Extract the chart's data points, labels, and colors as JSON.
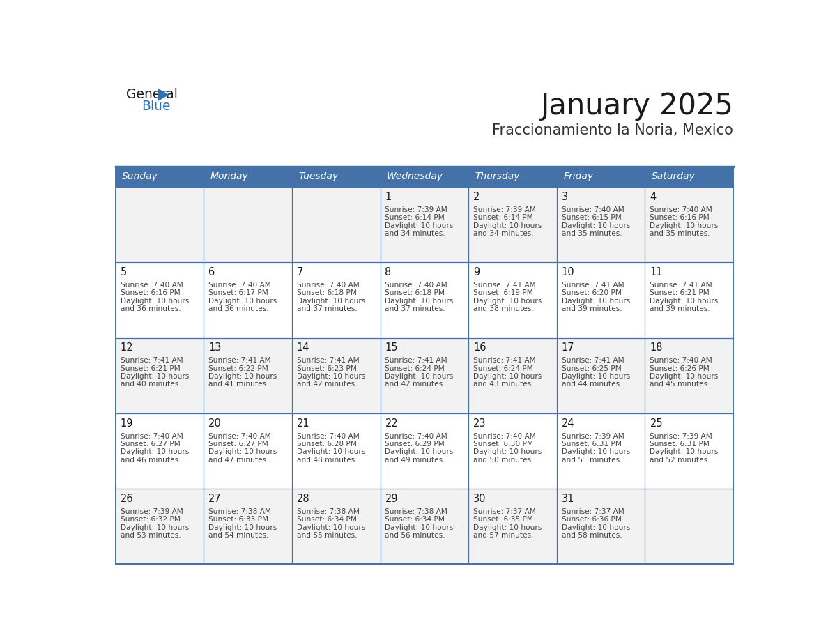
{
  "title": "January 2025",
  "subtitle": "Fraccionamiento la Noria, Mexico",
  "days_of_week": [
    "Sunday",
    "Monday",
    "Tuesday",
    "Wednesday",
    "Thursday",
    "Friday",
    "Saturday"
  ],
  "header_bg": "#4472A8",
  "header_text": "#FFFFFF",
  "row0_bg": "#F2F2F2",
  "row1_bg": "#FFFFFF",
  "row2_bg": "#F2F2F2",
  "row3_bg": "#FFFFFF",
  "row4_bg": "#F2F2F2",
  "border_color": "#4472A8",
  "grid_color": "#4472A8",
  "title_color": "#1a1a1a",
  "subtitle_color": "#333333",
  "cell_text_color": "#444444",
  "day_number_color": "#1a1a1a",
  "logo_general_color": "#1a1a1a",
  "logo_blue_color": "#2E75B6",
  "logo_triangle_color": "#2E75B6",
  "calendar": [
    [
      {
        "day": null,
        "data": null
      },
      {
        "day": null,
        "data": null
      },
      {
        "day": null,
        "data": null
      },
      {
        "day": 1,
        "data": {
          "sunrise": "7:39 AM",
          "sunset": "6:14 PM",
          "daylight": "10 hours",
          "daylight2": "and 34 minutes."
        }
      },
      {
        "day": 2,
        "data": {
          "sunrise": "7:39 AM",
          "sunset": "6:14 PM",
          "daylight": "10 hours",
          "daylight2": "and 34 minutes."
        }
      },
      {
        "day": 3,
        "data": {
          "sunrise": "7:40 AM",
          "sunset": "6:15 PM",
          "daylight": "10 hours",
          "daylight2": "and 35 minutes."
        }
      },
      {
        "day": 4,
        "data": {
          "sunrise": "7:40 AM",
          "sunset": "6:16 PM",
          "daylight": "10 hours",
          "daylight2": "and 35 minutes."
        }
      }
    ],
    [
      {
        "day": 5,
        "data": {
          "sunrise": "7:40 AM",
          "sunset": "6:16 PM",
          "daylight": "10 hours",
          "daylight2": "and 36 minutes."
        }
      },
      {
        "day": 6,
        "data": {
          "sunrise": "7:40 AM",
          "sunset": "6:17 PM",
          "daylight": "10 hours",
          "daylight2": "and 36 minutes."
        }
      },
      {
        "day": 7,
        "data": {
          "sunrise": "7:40 AM",
          "sunset": "6:18 PM",
          "daylight": "10 hours",
          "daylight2": "and 37 minutes."
        }
      },
      {
        "day": 8,
        "data": {
          "sunrise": "7:40 AM",
          "sunset": "6:18 PM",
          "daylight": "10 hours",
          "daylight2": "and 37 minutes."
        }
      },
      {
        "day": 9,
        "data": {
          "sunrise": "7:41 AM",
          "sunset": "6:19 PM",
          "daylight": "10 hours",
          "daylight2": "and 38 minutes."
        }
      },
      {
        "day": 10,
        "data": {
          "sunrise": "7:41 AM",
          "sunset": "6:20 PM",
          "daylight": "10 hours",
          "daylight2": "and 39 minutes."
        }
      },
      {
        "day": 11,
        "data": {
          "sunrise": "7:41 AM",
          "sunset": "6:21 PM",
          "daylight": "10 hours",
          "daylight2": "and 39 minutes."
        }
      }
    ],
    [
      {
        "day": 12,
        "data": {
          "sunrise": "7:41 AM",
          "sunset": "6:21 PM",
          "daylight": "10 hours",
          "daylight2": "and 40 minutes."
        }
      },
      {
        "day": 13,
        "data": {
          "sunrise": "7:41 AM",
          "sunset": "6:22 PM",
          "daylight": "10 hours",
          "daylight2": "and 41 minutes."
        }
      },
      {
        "day": 14,
        "data": {
          "sunrise": "7:41 AM",
          "sunset": "6:23 PM",
          "daylight": "10 hours",
          "daylight2": "and 42 minutes."
        }
      },
      {
        "day": 15,
        "data": {
          "sunrise": "7:41 AM",
          "sunset": "6:24 PM",
          "daylight": "10 hours",
          "daylight2": "and 42 minutes."
        }
      },
      {
        "day": 16,
        "data": {
          "sunrise": "7:41 AM",
          "sunset": "6:24 PM",
          "daylight": "10 hours",
          "daylight2": "and 43 minutes."
        }
      },
      {
        "day": 17,
        "data": {
          "sunrise": "7:41 AM",
          "sunset": "6:25 PM",
          "daylight": "10 hours",
          "daylight2": "and 44 minutes."
        }
      },
      {
        "day": 18,
        "data": {
          "sunrise": "7:40 AM",
          "sunset": "6:26 PM",
          "daylight": "10 hours",
          "daylight2": "and 45 minutes."
        }
      }
    ],
    [
      {
        "day": 19,
        "data": {
          "sunrise": "7:40 AM",
          "sunset": "6:27 PM",
          "daylight": "10 hours",
          "daylight2": "and 46 minutes."
        }
      },
      {
        "day": 20,
        "data": {
          "sunrise": "7:40 AM",
          "sunset": "6:27 PM",
          "daylight": "10 hours",
          "daylight2": "and 47 minutes."
        }
      },
      {
        "day": 21,
        "data": {
          "sunrise": "7:40 AM",
          "sunset": "6:28 PM",
          "daylight": "10 hours",
          "daylight2": "and 48 minutes."
        }
      },
      {
        "day": 22,
        "data": {
          "sunrise": "7:40 AM",
          "sunset": "6:29 PM",
          "daylight": "10 hours",
          "daylight2": "and 49 minutes."
        }
      },
      {
        "day": 23,
        "data": {
          "sunrise": "7:40 AM",
          "sunset": "6:30 PM",
          "daylight": "10 hours",
          "daylight2": "and 50 minutes."
        }
      },
      {
        "day": 24,
        "data": {
          "sunrise": "7:39 AM",
          "sunset": "6:31 PM",
          "daylight": "10 hours",
          "daylight2": "and 51 minutes."
        }
      },
      {
        "day": 25,
        "data": {
          "sunrise": "7:39 AM",
          "sunset": "6:31 PM",
          "daylight": "10 hours",
          "daylight2": "and 52 minutes."
        }
      }
    ],
    [
      {
        "day": 26,
        "data": {
          "sunrise": "7:39 AM",
          "sunset": "6:32 PM",
          "daylight": "10 hours",
          "daylight2": "and 53 minutes."
        }
      },
      {
        "day": 27,
        "data": {
          "sunrise": "7:38 AM",
          "sunset": "6:33 PM",
          "daylight": "10 hours",
          "daylight2": "and 54 minutes."
        }
      },
      {
        "day": 28,
        "data": {
          "sunrise": "7:38 AM",
          "sunset": "6:34 PM",
          "daylight": "10 hours",
          "daylight2": "and 55 minutes."
        }
      },
      {
        "day": 29,
        "data": {
          "sunrise": "7:38 AM",
          "sunset": "6:34 PM",
          "daylight": "10 hours",
          "daylight2": "and 56 minutes."
        }
      },
      {
        "day": 30,
        "data": {
          "sunrise": "7:37 AM",
          "sunset": "6:35 PM",
          "daylight": "10 hours",
          "daylight2": "and 57 minutes."
        }
      },
      {
        "day": 31,
        "data": {
          "sunrise": "7:37 AM",
          "sunset": "6:36 PM",
          "daylight": "10 hours",
          "daylight2": "and 58 minutes."
        }
      },
      {
        "day": null,
        "data": null
      }
    ]
  ]
}
